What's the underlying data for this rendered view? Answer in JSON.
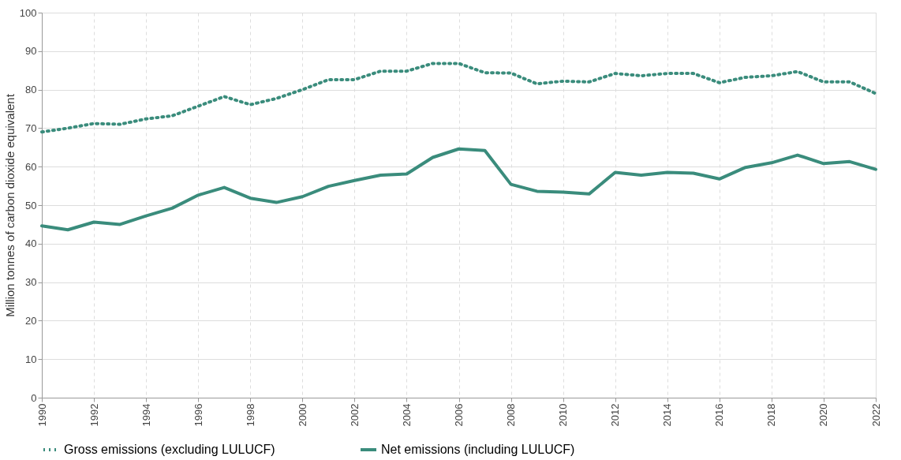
{
  "chart_data": {
    "type": "line",
    "ylabel": "Million tonnes of carbon dioxide equivalent",
    "x": [
      1990,
      1991,
      1992,
      1993,
      1994,
      1995,
      1996,
      1997,
      1998,
      1999,
      2000,
      2001,
      2002,
      2003,
      2004,
      2005,
      2006,
      2007,
      2008,
      2009,
      2010,
      2011,
      2012,
      2013,
      2014,
      2015,
      2016,
      2017,
      2018,
      2019,
      2020,
      2021,
      2022
    ],
    "series": [
      {
        "name": "Gross emissions (excluding LULUCF)",
        "color": "#3a8c7c",
        "line_style": "dotted",
        "values": [
          69,
          70,
          71.2,
          71,
          72.4,
          73.2,
          75.7,
          78.2,
          76.1,
          77.7,
          80,
          82.6,
          82.6,
          84.8,
          84.8,
          86.8,
          86.8,
          84.4,
          84.3,
          81.5,
          82.2,
          82,
          84.2,
          83.6,
          84.2,
          84.2,
          81.8,
          83.2,
          83.6,
          84.7,
          82,
          82,
          79
        ]
      },
      {
        "name": "Net emissions (including LULUCF)",
        "color": "#3a8c7c",
        "line_style": "solid",
        "values": [
          44.6,
          43.6,
          45.6,
          45,
          47.2,
          49.2,
          52.6,
          54.6,
          51.8,
          50.7,
          52.2,
          54.9,
          56.4,
          57.8,
          58.1,
          62.4,
          64.6,
          64.2,
          55.4,
          53.6,
          53.4,
          52.9,
          58.5,
          57.8,
          58.5,
          58.3,
          56.8,
          59.8,
          61,
          63,
          60.8,
          61.3,
          59.3
        ]
      }
    ],
    "xlim": [
      1990,
      2022
    ],
    "xticks": [
      1990,
      1992,
      1994,
      1996,
      1998,
      2000,
      2002,
      2004,
      2006,
      2008,
      2010,
      2012,
      2014,
      2016,
      2018,
      2020,
      2022
    ],
    "ylim": [
      0,
      100
    ],
    "yticks": [
      0,
      10,
      20,
      30,
      40,
      50,
      60,
      70,
      80,
      90,
      100
    ],
    "grid": true,
    "legend": "bottom",
    "marker": "none"
  }
}
